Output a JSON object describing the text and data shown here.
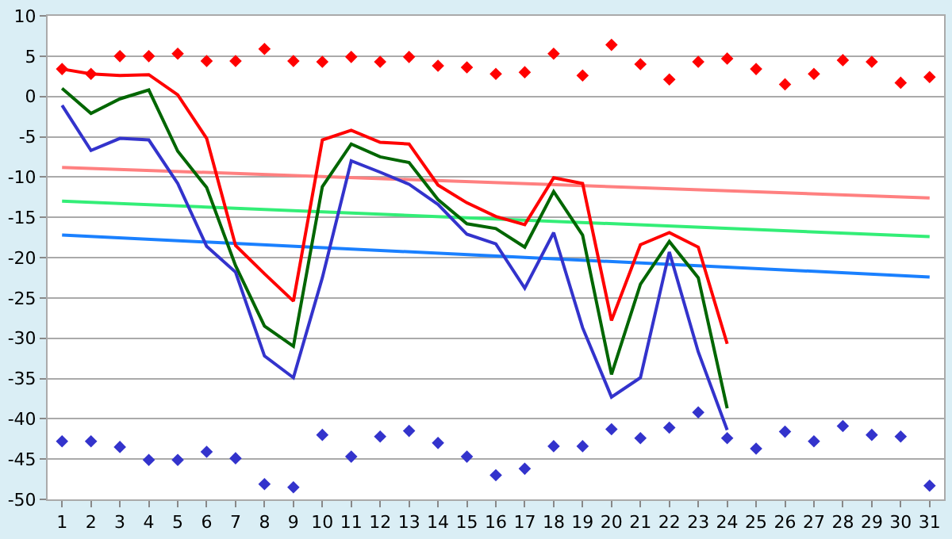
{
  "chart_data": {
    "type": "line",
    "x": [
      1,
      2,
      3,
      4,
      5,
      6,
      7,
      8,
      9,
      10,
      11,
      12,
      13,
      14,
      15,
      16,
      17,
      18,
      19,
      20,
      21,
      22,
      23,
      24
    ],
    "xlim": [
      0.5,
      31.5
    ],
    "xticks": [
      1,
      2,
      3,
      4,
      5,
      6,
      7,
      8,
      9,
      10,
      11,
      12,
      13,
      14,
      15,
      16,
      17,
      18,
      19,
      20,
      21,
      22,
      23,
      24,
      25,
      26,
      27,
      28,
      29,
      30,
      31
    ],
    "ylim": [
      -50,
      10
    ],
    "yticks": [
      -50,
      -45,
      -40,
      -35,
      -30,
      -25,
      -20,
      -15,
      -10,
      -5,
      0,
      5,
      10
    ],
    "grid": "y",
    "line_style": "solid",
    "series": [
      {
        "x": [
          1,
          31
        ],
        "color": "#ff8080",
        "values": [
          -8.8,
          -12.6
        ]
      },
      {
        "x": [
          1,
          31
        ],
        "color": "#33ee77",
        "values": [
          -13.0,
          -17.4
        ]
      },
      {
        "x": [
          1,
          31
        ],
        "color": "#1a80ff",
        "values": [
          -17.2,
          -22.4
        ]
      },
      {
        "color": "#ff0000",
        "values": [
          3.4,
          2.8,
          2.6,
          2.7,
          0.2,
          -5.2,
          -18.5,
          -22,
          -25.4,
          -5.4,
          -4.2,
          -5.7,
          -5.9,
          -11.0,
          -13.2,
          -14.9,
          -15.9,
          -10.1,
          -10.8,
          -27.8,
          -18.4,
          -16.9,
          -18.7,
          -30.7
        ]
      },
      {
        "color": "#006600",
        "values": [
          1.0,
          -2.1,
          -0.3,
          0.8,
          -6.8,
          -11.3,
          -21,
          -28.5,
          -31,
          -11.2,
          -5.9,
          -7.5,
          -8.2,
          -12.8,
          -15.8,
          -16.4,
          -18.7,
          -11.8,
          -17.2,
          -34.5,
          -23.3,
          -18.0,
          -22.5,
          -38.7
        ]
      },
      {
        "color": "#3333cc",
        "values": [
          -1.1,
          -6.7,
          -5.2,
          -5.4,
          -10.8,
          -18.6,
          -21.8,
          -32.2,
          -34.9,
          -22.5,
          -8.0,
          -9.4,
          -10.9,
          -13.4,
          -17.1,
          -18.3,
          -23.8,
          -16.9,
          -28.7,
          -37.3,
          -34.9,
          -19.3,
          -31.7,
          -41.4
        ]
      },
      {
        "type": "scatter",
        "marker": "diamond",
        "color": "#ff0000",
        "x": [
          1,
          2,
          3,
          4,
          5,
          6,
          7,
          8,
          9,
          10,
          11,
          12,
          13,
          14,
          15,
          16,
          17,
          18,
          19,
          20,
          21,
          22,
          23,
          24,
          25,
          26,
          27,
          28,
          29,
          30,
          31
        ],
        "values": [
          3.4,
          2.8,
          5.0,
          5.0,
          5.3,
          4.4,
          4.4,
          5.9,
          4.4,
          4.3,
          4.9,
          4.3,
          4.9,
          3.8,
          3.6,
          2.8,
          3.0,
          5.3,
          2.6,
          6.4,
          4.0,
          2.1,
          4.3,
          4.7,
          3.4,
          1.5,
          2.8,
          4.5,
          4.3,
          1.7,
          2.4
        ]
      },
      {
        "type": "scatter",
        "marker": "diamond",
        "color": "#3333cc",
        "x": [
          1,
          2,
          3,
          4,
          5,
          6,
          7,
          8,
          9,
          10,
          11,
          12,
          13,
          14,
          15,
          16,
          17,
          18,
          19,
          20,
          21,
          22,
          23,
          24,
          25,
          26,
          27,
          28,
          29,
          30,
          31
        ],
        "values": [
          -42.8,
          -42.8,
          -43.5,
          -45.1,
          -45.1,
          -44.1,
          -44.9,
          -48.1,
          -48.5,
          -42.0,
          -44.7,
          -42.2,
          -41.5,
          -43.0,
          -44.7,
          -47.0,
          -46.2,
          -43.4,
          -43.4,
          -41.3,
          -42.4,
          -41.1,
          -39.2,
          -42.4,
          -43.7,
          -41.6,
          -42.8,
          -40.9,
          -42.0,
          -42.2,
          -48.3
        ]
      }
    ]
  }
}
